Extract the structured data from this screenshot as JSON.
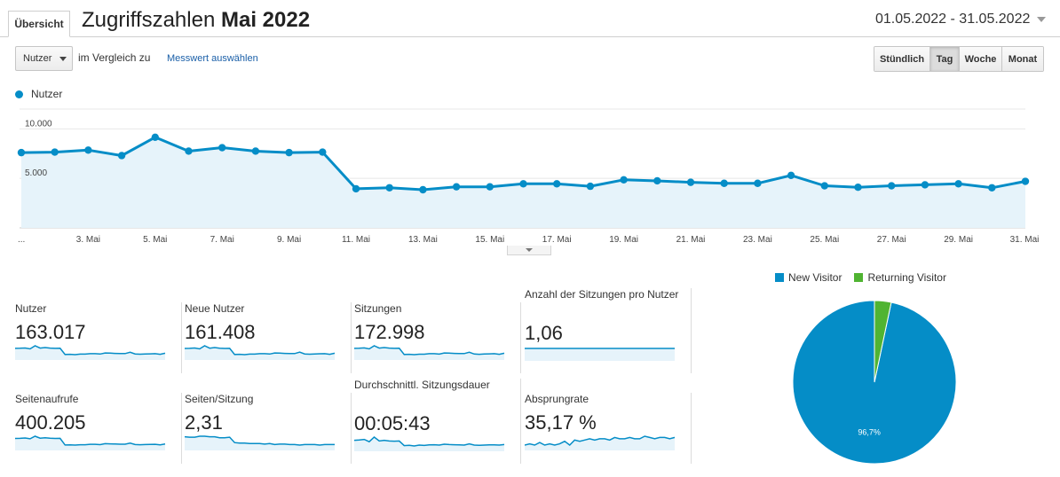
{
  "header": {
    "tab_label": "Übersicht",
    "title_prefix": "Zugriffszahlen ",
    "title_bold": "Mai 2022",
    "date_range": "01.05.2022 - 31.05.2022"
  },
  "controls": {
    "metric_select": "Nutzer",
    "compare_text": "im Vergleich zu",
    "compare_link": "Messwert auswählen",
    "granularity": [
      "Stündlich",
      "Tag",
      "Woche",
      "Monat"
    ],
    "granularity_active": "Tag"
  },
  "colors": {
    "series": "#058dc7",
    "area": "#e6f3fa",
    "returning": "#50b432"
  },
  "chart_data": [
    {
      "type": "area",
      "legend": [
        "Nutzer"
      ],
      "legend_position": "top-left",
      "y_ticks": [
        "10.000",
        "5.000"
      ],
      "ylim": [
        0,
        12000
      ],
      "x_tick_labels": [
        "...",
        "3. Mai",
        "5. Mai",
        "7. Mai",
        "9. Mai",
        "11. Mai",
        "13. Mai",
        "15. Mai",
        "17. Mai",
        "19. Mai",
        "21. Mai",
        "23. Mai",
        "25. Mai",
        "27. Mai",
        "29. Mai",
        "31. Mai"
      ],
      "x": [
        1,
        2,
        3,
        4,
        5,
        6,
        7,
        8,
        9,
        10,
        11,
        12,
        13,
        14,
        15,
        16,
        17,
        18,
        19,
        20,
        21,
        22,
        23,
        24,
        25,
        26,
        27,
        28,
        29,
        30,
        31
      ],
      "series": [
        {
          "name": "Nutzer",
          "values": [
            7600,
            7650,
            7850,
            7300,
            9150,
            7750,
            8100,
            7750,
            7600,
            7650,
            3950,
            4050,
            3850,
            4150,
            4150,
            4450,
            4450,
            4200,
            4850,
            4750,
            4600,
            4500,
            4500,
            5300,
            4250,
            4100,
            4250,
            4350,
            4450,
            4050,
            4700
          ]
        }
      ],
      "grid": true
    },
    {
      "type": "pie",
      "legend": [
        "New Visitor",
        "Returning Visitor"
      ],
      "legend_position": "top",
      "slices": [
        {
          "name": "New Visitor",
          "value": 96.7,
          "label": "96,7%"
        },
        {
          "name": "Returning Visitor",
          "value": 3.3
        }
      ]
    }
  ],
  "metrics": [
    {
      "label": "Nutzer",
      "value": "163.017",
      "spark": [
        7600,
        7650,
        7850,
        7300,
        9150,
        7750,
        8100,
        7750,
        7600,
        7650,
        3950,
        4050,
        3850,
        4150,
        4150,
        4450,
        4450,
        4200,
        4850,
        4750,
        4600,
        4500,
        4500,
        5300,
        4250,
        4100,
        4250,
        4350,
        4450,
        4050,
        4700
      ]
    },
    {
      "label": "Neue Nutzer",
      "value": "161.408",
      "spark": [
        7500,
        7550,
        7750,
        7200,
        9050,
        7650,
        8000,
        7650,
        7500,
        7550,
        3900,
        4000,
        3800,
        4100,
        4100,
        4400,
        4400,
        4150,
        4800,
        4700,
        4550,
        4450,
        4450,
        5250,
        4200,
        4050,
        4200,
        4300,
        4400,
        4000,
        4650
      ]
    },
    {
      "label": "Sitzungen",
      "value": "172.998",
      "spark": [
        8100,
        8150,
        8350,
        7750,
        9700,
        8250,
        8600,
        8250,
        8100,
        8150,
        4200,
        4300,
        4100,
        4400,
        4400,
        4700,
        4700,
        4450,
        5150,
        5050,
        4900,
        4800,
        4800,
        5600,
        4500,
        4350,
        4500,
        4600,
        4700,
        4300,
        5000
      ]
    },
    {
      "label": "Anzahl der Sitzungen pro Nutzer",
      "value": "1,06",
      "spark": [
        1.06,
        1.06,
        1.06,
        1.06,
        1.06,
        1.06,
        1.06,
        1.06,
        1.06,
        1.06,
        1.06,
        1.06,
        1.06,
        1.06,
        1.06,
        1.06,
        1.06,
        1.06,
        1.06,
        1.06,
        1.06,
        1.06,
        1.06,
        1.06,
        1.06,
        1.06,
        1.06,
        1.06,
        1.06,
        1.06,
        1.06
      ]
    },
    {
      "label": "Seitenaufrufe",
      "value": "400.205",
      "spark": [
        19500,
        19600,
        20100,
        18900,
        22800,
        19800,
        20500,
        19800,
        19400,
        19600,
        9600,
        9800,
        9400,
        10000,
        10000,
        10600,
        10600,
        10100,
        11500,
        11300,
        11000,
        10800,
        10800,
        12400,
        10200,
        9900,
        10200,
        10400,
        10600,
        9800,
        11200
      ]
    },
    {
      "label": "Seiten/Sitzung",
      "value": "2,31",
      "spark": [
        2.42,
        2.41,
        2.41,
        2.43,
        2.43,
        2.42,
        2.42,
        2.4,
        2.4,
        2.41,
        2.3,
        2.29,
        2.29,
        2.28,
        2.28,
        2.28,
        2.27,
        2.28,
        2.26,
        2.27,
        2.27,
        2.26,
        2.26,
        2.25,
        2.26,
        2.26,
        2.26,
        2.25,
        2.26,
        2.26,
        2.26
      ]
    },
    {
      "label": "Durchschnittl. Sitzungsdauer",
      "value": "00:05:43",
      "spark": [
        360,
        362,
        365,
        352,
        378,
        356,
        360,
        356,
        355,
        356,
        330,
        332,
        328,
        333,
        331,
        334,
        335,
        333,
        338,
        336,
        335,
        334,
        333,
        340,
        333,
        332,
        333,
        334,
        334,
        333,
        336
      ]
    },
    {
      "label": "Absprungrate",
      "value": "35,17 %",
      "spark": [
        31,
        32,
        31,
        33,
        31,
        32,
        31,
        32,
        34,
        31,
        35,
        34,
        35,
        36,
        35,
        36,
        36,
        35,
        37,
        36,
        36,
        37,
        36,
        36,
        38,
        37,
        36,
        37,
        37,
        36,
        37
      ]
    }
  ]
}
